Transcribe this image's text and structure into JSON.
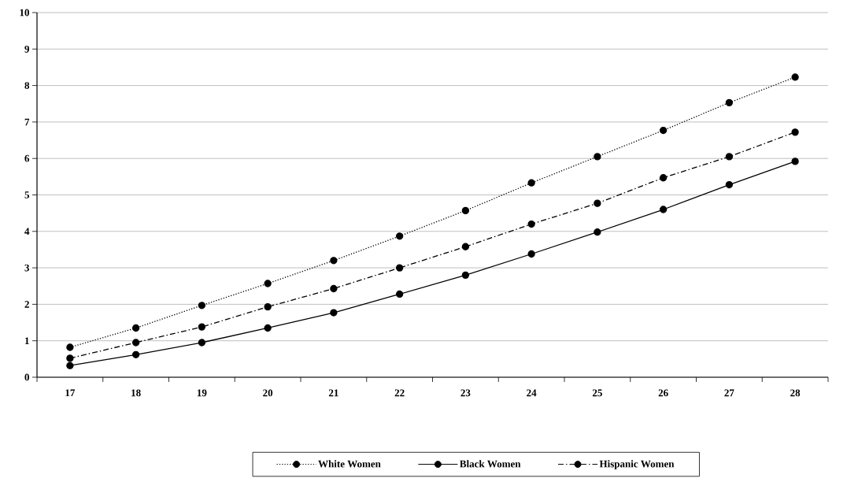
{
  "chart_data": {
    "type": "line",
    "categories": [
      "17",
      "18",
      "19",
      "20",
      "21",
      "22",
      "23",
      "24",
      "25",
      "26",
      "27",
      "28"
    ],
    "series": [
      {
        "name": "White Women",
        "color": "#000000",
        "line_style": "dotted",
        "values": [
          0.82,
          1.35,
          1.97,
          2.57,
          3.2,
          3.87,
          4.57,
          5.33,
          6.05,
          6.77,
          7.53,
          8.23
        ]
      },
      {
        "name": "Black Women",
        "color": "#000000",
        "line_style": "solid",
        "values": [
          0.32,
          0.62,
          0.95,
          1.35,
          1.77,
          2.28,
          2.8,
          3.38,
          3.98,
          4.6,
          5.28,
          5.92
        ]
      },
      {
        "name": "Hispanic Women",
        "color": "#000000",
        "line_style": "dashdot",
        "values": [
          0.52,
          0.95,
          1.38,
          1.93,
          2.43,
          3.0,
          3.58,
          4.2,
          4.77,
          5.47,
          6.05,
          6.72
        ]
      }
    ],
    "ylim": [
      0,
      10
    ],
    "yticks": [
      0,
      1,
      2,
      3,
      4,
      5,
      6,
      7,
      8,
      9,
      10
    ],
    "grid": "y",
    "marker": "circle",
    "legend": "bottom"
  }
}
